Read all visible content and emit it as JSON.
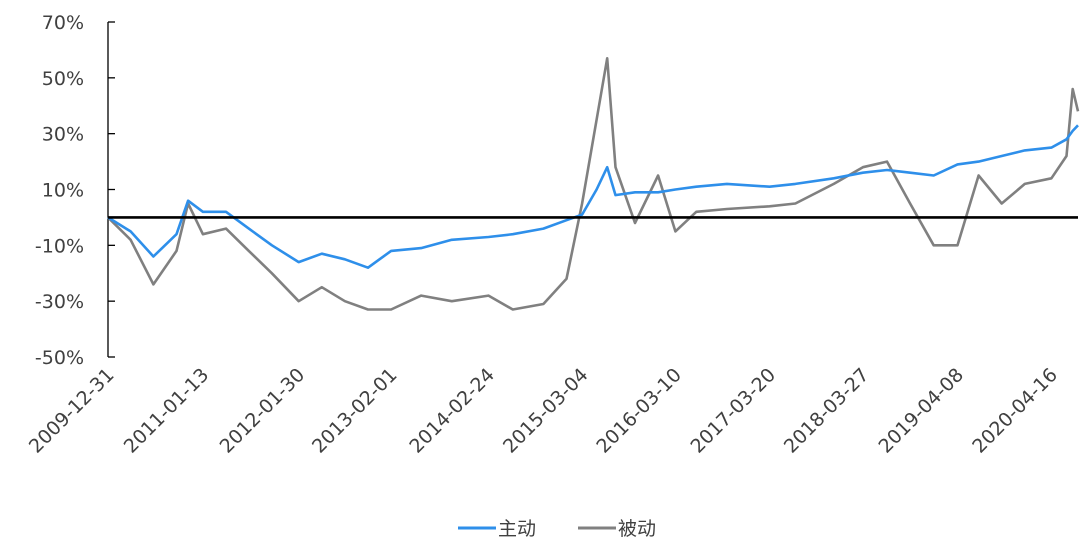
{
  "chart_data": {
    "type": "line",
    "x": [
      "2009-12-31",
      "2010-03-31",
      "2010-06-30",
      "2010-09-30",
      "2010-11-15",
      "2011-01-13",
      "2011-04-15",
      "2011-07-15",
      "2011-10-15",
      "2012-01-30",
      "2012-05-01",
      "2012-08-01",
      "2012-11-01",
      "2013-02-01",
      "2013-06-01",
      "2013-10-01",
      "2014-02-24",
      "2014-06-01",
      "2014-10-01",
      "2015-01-01",
      "2015-03-04",
      "2015-05-01",
      "2015-06-12",
      "2015-07-15",
      "2015-10-01",
      "2016-01-01",
      "2016-03-10",
      "2016-06-01",
      "2016-10-01",
      "2017-03-20",
      "2017-07-01",
      "2017-12-01",
      "2018-03-27",
      "2018-07-01",
      "2018-10-01",
      "2019-01-03",
      "2019-04-08",
      "2019-07-01",
      "2019-10-01",
      "2020-01-01",
      "2020-04-16",
      "2020-06-15",
      "2020-07-10",
      "2020-07-31"
    ],
    "x_tick_labels": [
      "2009-12-31",
      "2011-01-13",
      "2012-01-30",
      "2013-02-01",
      "2014-02-24",
      "2015-03-04",
      "2016-03-10",
      "2017-03-20",
      "2018-03-27",
      "2019-04-08",
      "2020-04-16"
    ],
    "series": [
      {
        "name": "主动",
        "color": "#2E8FEA",
        "values": [
          0,
          -5,
          -14,
          -6,
          6,
          2,
          2,
          -4,
          -10,
          -16,
          -13,
          -15,
          -18,
          -12,
          -11,
          -8,
          -7,
          -6,
          -4,
          -1,
          1,
          10,
          18,
          8,
          9,
          9,
          10,
          11,
          12,
          11,
          12,
          14,
          16,
          17,
          16,
          15,
          19,
          20,
          22,
          24,
          25,
          28,
          31,
          33
        ]
      },
      {
        "name": "被动",
        "color": "#808080",
        "values": [
          0,
          -8,
          -24,
          -12,
          5,
          -6,
          -4,
          -12,
          -20,
          -30,
          -25,
          -30,
          -33,
          -33,
          -28,
          -30,
          -28,
          -33,
          -31,
          -22,
          5,
          35,
          57,
          18,
          -2,
          15,
          -5,
          2,
          3,
          4,
          5,
          12,
          18,
          20,
          5,
          -10,
          -10,
          15,
          5,
          12,
          14,
          22,
          46,
          38
        ]
      }
    ],
    "y_ticks": [
      "70%",
      "50%",
      "30%",
      "10%",
      "-10%",
      "-30%",
      "-50%"
    ],
    "ylim": [
      -50,
      70
    ],
    "reference_line_y": 0,
    "reference_line_color": "#000000",
    "legend_position": "bottom-center",
    "grid": false
  }
}
